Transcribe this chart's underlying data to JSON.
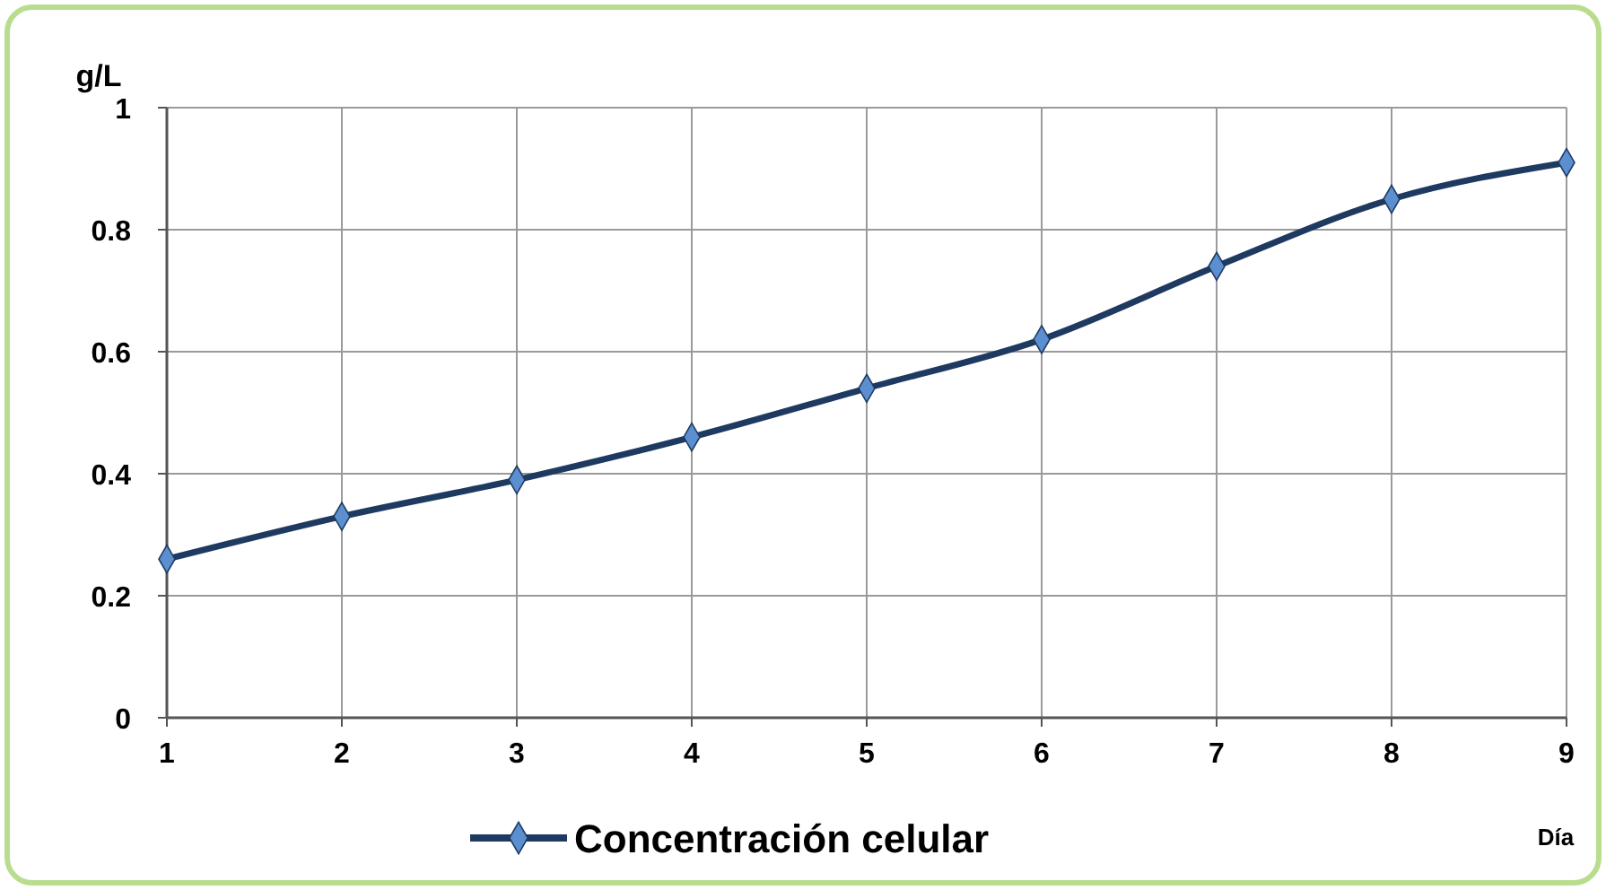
{
  "chart_data": {
    "type": "line",
    "xlabel": "Día",
    "ylabel": "g/L",
    "x": [
      1,
      2,
      3,
      4,
      5,
      6,
      7,
      8,
      9
    ],
    "series": [
      {
        "name": "Concentración celular",
        "color": "#1f3a60",
        "values": [
          0.26,
          0.33,
          0.39,
          0.46,
          0.54,
          0.62,
          0.74,
          0.85,
          0.91
        ]
      }
    ],
    "xlim": [
      1,
      9
    ],
    "xticks": [
      1,
      2,
      3,
      4,
      5,
      6,
      7,
      8,
      9
    ],
    "ylim": [
      0,
      1
    ],
    "yticks": [
      0,
      0.2,
      0.4,
      0.6,
      0.8,
      1
    ],
    "grid": true,
    "legend": "bottom",
    "marker": "diamond",
    "line_style": "solid"
  }
}
